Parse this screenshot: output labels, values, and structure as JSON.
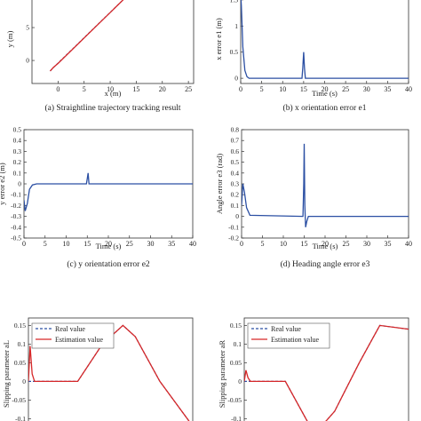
{
  "chart_data": [
    {
      "id": "a",
      "type": "line",
      "caption": "(a) Straightline trajectory tracking result",
      "xlabel": "x (m)",
      "ylabel": "y (m)",
      "xlim": [
        -5,
        26
      ],
      "ylim": [
        -3.5,
        10
      ],
      "xticks": [
        0,
        5,
        10,
        15,
        20,
        25
      ],
      "yticks": [
        0,
        5
      ],
      "series": [
        {
          "color": "#2b4fa3",
          "style": "dashed",
          "x": [
            -1.5,
            -0.8,
            0,
            13.5
          ],
          "y": [
            -1.6,
            -1.0,
            -0.4,
            10
          ]
        },
        {
          "color": "#d62728",
          "style": "solid",
          "x": [
            -1.5,
            -0.9,
            0,
            13.5
          ],
          "y": [
            -1.6,
            -1.05,
            -0.45,
            10
          ]
        }
      ]
    },
    {
      "id": "b",
      "type": "line",
      "caption": "(b) x orientation error e1",
      "xlabel": "Time (s)",
      "ylabel": "x error e1 (m)",
      "xlim": [
        0,
        40
      ],
      "ylim": [
        -0.1,
        1.6
      ],
      "xticks": [
        0,
        5,
        10,
        15,
        20,
        25,
        30,
        35,
        40
      ],
      "yticks": [
        0,
        0.5,
        1,
        1.5
      ],
      "series": [
        {
          "color": "#2b4fa3",
          "x": [
            0,
            0.15,
            0.5,
            1.0,
            1.5,
            2,
            14.6,
            14.8,
            15.0,
            15.2,
            15.4,
            40
          ],
          "y": [
            1.6,
            1.4,
            0.6,
            0.15,
            0.03,
            0,
            0,
            0.2,
            0.5,
            0.2,
            0,
            0
          ]
        }
      ]
    },
    {
      "id": "c",
      "type": "line",
      "caption": "(c) y orientation error e2",
      "xlabel": "Time (s)",
      "ylabel": "y error e2 (m)",
      "xlim": [
        0,
        40
      ],
      "ylim": [
        -0.5,
        0.5
      ],
      "xticks": [
        0,
        5,
        10,
        15,
        20,
        25,
        30,
        35,
        40
      ],
      "yticks": [
        -0.5,
        -0.4,
        -0.3,
        -0.2,
        -0.1,
        0,
        0.1,
        0.2,
        0.3,
        0.4,
        0.5
      ],
      "series": [
        {
          "color": "#2b4fa3",
          "x": [
            0,
            0.3,
            0.8,
            1.3,
            2,
            3,
            14.8,
            15.0,
            15.2,
            15.4,
            40
          ],
          "y": [
            -0.15,
            -0.25,
            -0.18,
            -0.05,
            -0.01,
            0,
            0,
            0.05,
            0.1,
            0,
            0
          ]
        }
      ]
    },
    {
      "id": "d",
      "type": "line",
      "caption": "(d) Heading angle error e3",
      "xlabel": "Time (s)",
      "ylabel": "Angle error e3 (rad)",
      "xlim": [
        0,
        40
      ],
      "ylim": [
        -0.2,
        0.8
      ],
      "xticks": [
        0,
        5,
        10,
        15,
        20,
        25,
        30,
        35,
        40
      ],
      "yticks": [
        -0.2,
        -0.1,
        0,
        0.1,
        0.2,
        0.3,
        0.4,
        0.5,
        0.6,
        0.7,
        0.8
      ],
      "series": [
        {
          "color": "#2b4fa3",
          "x": [
            0,
            0.3,
            0.7,
            1.2,
            2,
            14.7,
            14.9,
            15.0,
            15.15,
            15.35,
            15.6,
            16,
            40
          ],
          "y": [
            0.1,
            0.3,
            0.22,
            0.08,
            0.01,
            0,
            0.3,
            0.67,
            0.1,
            -0.1,
            -0.05,
            0,
            0
          ]
        }
      ]
    },
    {
      "id": "e",
      "type": "line",
      "ylabel": "Slipping parameter aL",
      "xlim": [
        0,
        40
      ],
      "ylim": [
        -0.13,
        0.17
      ],
      "yticks": [
        -0.1,
        -0.05,
        0,
        0.05,
        0.1,
        0.15
      ],
      "legend": {
        "position": "top-left",
        "entries": [
          "Real value",
          "Estimation value"
        ]
      },
      "series": [
        {
          "name": "Real value",
          "color": "#2b4fa3",
          "style": "dashed",
          "x": [
            0,
            1,
            10,
            12,
            18,
            23,
            26,
            32,
            40
          ],
          "y": [
            0,
            0,
            0,
            0,
            0.1,
            0.15,
            0.12,
            0,
            -0.12
          ]
        },
        {
          "name": "Estimation value",
          "color": "#d62728",
          "style": "solid",
          "x": [
            0,
            0.4,
            0.9,
            1.5,
            10,
            12,
            18,
            23,
            26,
            32,
            40
          ],
          "y": [
            0,
            0.095,
            0.02,
            0,
            0,
            0,
            0.1,
            0.15,
            0.12,
            0,
            -0.12
          ]
        }
      ]
    },
    {
      "id": "f",
      "type": "line",
      "ylabel": "Slipping parameter aR",
      "xlim": [
        0,
        40
      ],
      "ylim": [
        -0.13,
        0.17
      ],
      "yticks": [
        -0.1,
        -0.05,
        0,
        0.05,
        0.1,
        0.15
      ],
      "legend": {
        "position": "top-left",
        "entries": [
          "Real value",
          "Estimation value"
        ]
      },
      "series": [
        {
          "name": "Real value",
          "color": "#2b4fa3",
          "style": "dashed",
          "x": [
            0,
            1,
            6,
            10,
            16,
            18,
            22,
            28,
            33,
            40
          ],
          "y": [
            0,
            0,
            0,
            0,
            -0.12,
            -0.13,
            -0.08,
            0.05,
            0.15,
            0.14
          ]
        },
        {
          "name": "Estimation value",
          "color": "#d62728",
          "style": "solid",
          "x": [
            0,
            0.4,
            0.9,
            1.5,
            6,
            10,
            16,
            18,
            22,
            28,
            33,
            40
          ],
          "y": [
            0,
            0.03,
            0.01,
            0,
            0,
            0,
            -0.12,
            -0.13,
            -0.08,
            0.05,
            0.15,
            0.14
          ]
        }
      ]
    }
  ]
}
